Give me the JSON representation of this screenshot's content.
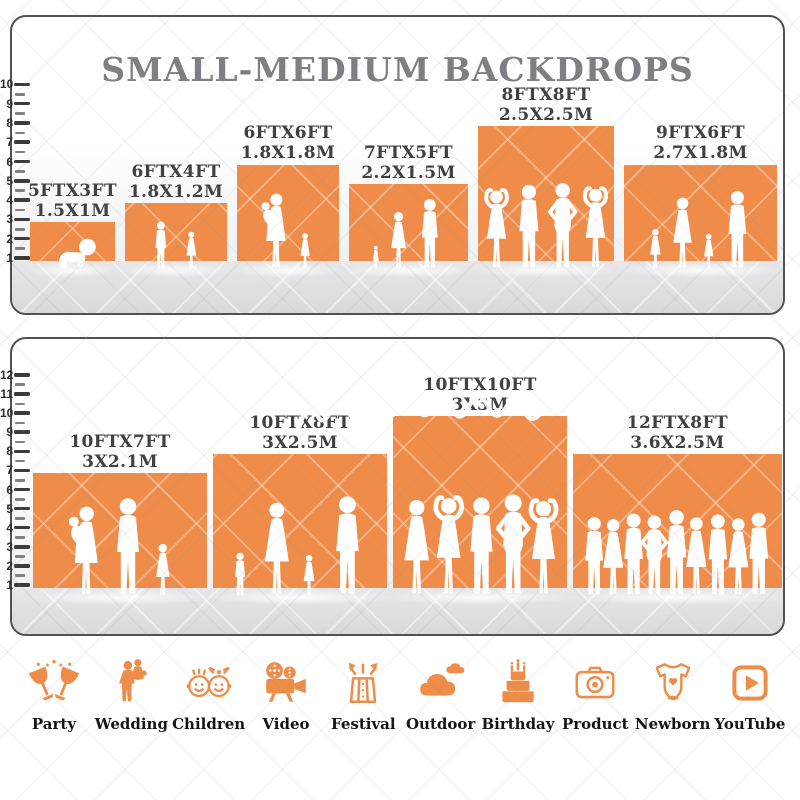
{
  "title": "SMALL-MEDIUM BACKDROPS",
  "colors": {
    "backdrop_orange": "#EF8C49",
    "icon_orange": "#EE8C48",
    "title_gray": "#7D7F82",
    "label_dark": "#3F4042"
  },
  "panels": [
    {
      "name": "small-backdrops",
      "ruler_unit": "FT",
      "ruler_labels": [
        "1",
        "2",
        "3",
        "4",
        "5",
        "6",
        "7",
        "8",
        "9",
        "10"
      ],
      "backdrops": [
        {
          "label_ft": "5FTX3FT",
          "label_m": "1.5X1M",
          "w_ft": 5,
          "h_ft": 3,
          "figures": "crawling-baby"
        },
        {
          "label_ft": "6FTX4FT",
          "label_m": "1.8X1.2M",
          "w_ft": 6,
          "h_ft": 4,
          "figures": "two-children"
        },
        {
          "label_ft": "6FTX6FT",
          "label_m": "1.8X1.8M",
          "w_ft": 6,
          "h_ft": 6,
          "figures": "mother-baby-toddler"
        },
        {
          "label_ft": "7FTX5FT",
          "label_m": "2.2X1.5M",
          "w_ft": 7,
          "h_ft": 5,
          "figures": "toddler-woman-man"
        },
        {
          "label_ft": "8FTX8FT",
          "label_m": "2.5X2.5M",
          "w_ft": 8,
          "h_ft": 8,
          "figures": "four-adults"
        },
        {
          "label_ft": "9FTX6FT",
          "label_m": "2.7X1.8M",
          "w_ft": 9,
          "h_ft": 6,
          "figures": "family-four"
        }
      ]
    },
    {
      "name": "medium-backdrops",
      "ruler_unit": "FT",
      "ruler_labels": [
        "1",
        "2",
        "3",
        "4",
        "5",
        "6",
        "7",
        "8",
        "9",
        "10",
        "11",
        "12"
      ],
      "backdrops": [
        {
          "label_ft": "10FTX7FT",
          "label_m": "3X2.1M",
          "w_ft": 10,
          "h_ft": 7,
          "figures": "family-three"
        },
        {
          "label_ft": "10FTX8FT",
          "label_m": "3X2.5M",
          "w_ft": 10,
          "h_ft": 8,
          "figures": "family-four-holding-hands"
        },
        {
          "label_ft": "10FTX10FT",
          "label_m": "3X3M",
          "w_ft": 10,
          "h_ft": 10,
          "figures": "five-adults"
        },
        {
          "label_ft": "12FTX8FT",
          "label_m": "3.6X2.5M",
          "w_ft": 12,
          "h_ft": 8,
          "figures": "crowd-nine"
        }
      ]
    }
  ],
  "categories": [
    {
      "label": "Party",
      "icon": "party-icon"
    },
    {
      "label": "Wedding",
      "icon": "wedding-icon"
    },
    {
      "label": "Children",
      "icon": "children-icon"
    },
    {
      "label": "Video",
      "icon": "video-icon"
    },
    {
      "label": "Festival",
      "icon": "festival-icon"
    },
    {
      "label": "Outdoor",
      "icon": "outdoor-icon"
    },
    {
      "label": "Birthday",
      "icon": "birthday-icon"
    },
    {
      "label": "Product",
      "icon": "product-icon"
    },
    {
      "label": "Newborn",
      "icon": "newborn-icon"
    },
    {
      "label": "YouTube",
      "icon": "youtube-icon"
    }
  ]
}
